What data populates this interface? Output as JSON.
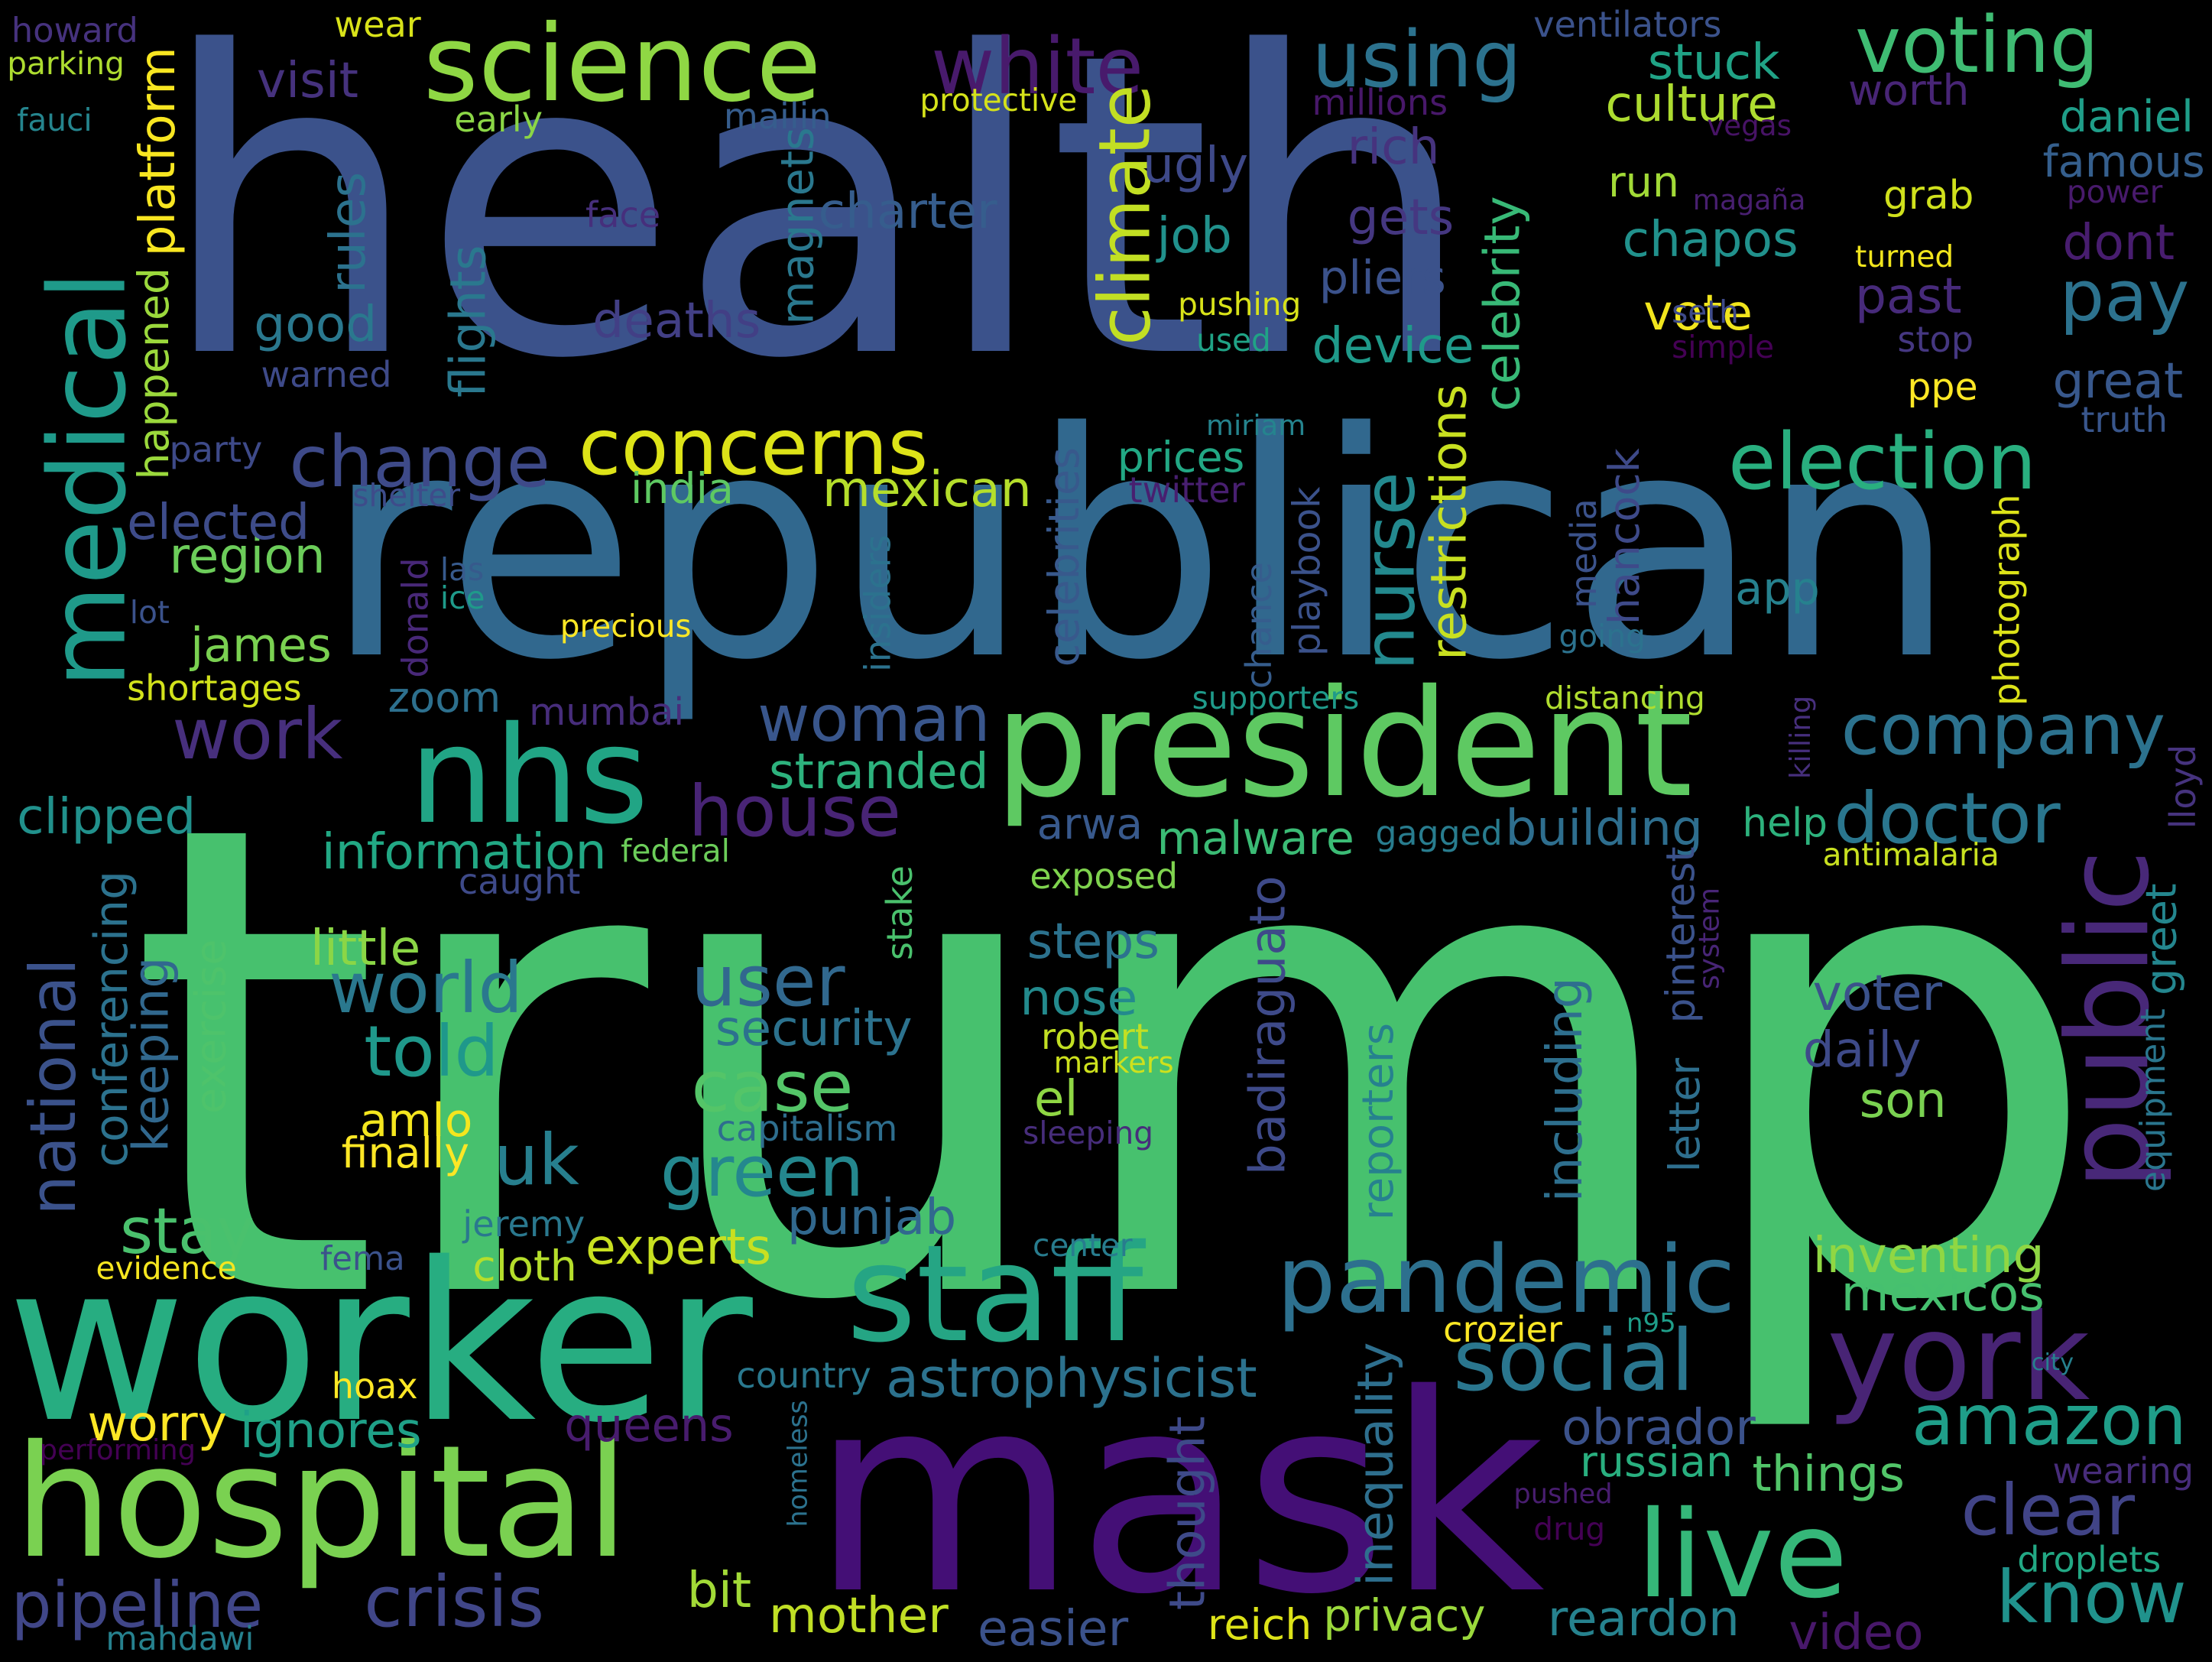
{
  "background": "#000000",
  "palette": {
    "indigo": "#440154",
    "purple": "#472d7b",
    "slate": "#3b528b",
    "steel": "#2c728e",
    "teal": "#21918c",
    "sea": "#28ae80",
    "green": "#5ec962",
    "lime": "#addc30",
    "yellow": "#fde725"
  },
  "words": [
    {
      "text": "trump",
      "color": "#47c16e"
    },
    {
      "text": "health",
      "color": "#3b528b"
    },
    {
      "text": "republican",
      "color": "#31688e"
    },
    {
      "text": "mask",
      "color": "#440f76"
    },
    {
      "text": "worker",
      "color": "#27ad81"
    },
    {
      "text": "hospital",
      "color": "#7ad151"
    },
    {
      "text": "president",
      "color": "#5ec962"
    },
    {
      "text": "staff",
      "color": "#25a584"
    },
    {
      "text": "nhs",
      "color": "#21a585"
    },
    {
      "text": "medical",
      "color": "#1f9a8a"
    },
    {
      "text": "york",
      "color": "#482475"
    },
    {
      "text": "live",
      "color": "#35b779"
    },
    {
      "text": "science",
      "color": "#8fd744"
    },
    {
      "text": "public",
      "color": "#482878"
    },
    {
      "text": "pandemic",
      "color": "#2d708e"
    },
    {
      "text": "election",
      "color": "#29af7f"
    },
    {
      "text": "concerns",
      "color": "#dde318"
    },
    {
      "text": "change",
      "color": "#3e4a89"
    },
    {
      "text": "social",
      "color": "#2a768e"
    },
    {
      "text": "company",
      "color": "#2c728e"
    },
    {
      "text": "woman",
      "color": "#39568c"
    },
    {
      "text": "using",
      "color": "#2c728e"
    },
    {
      "text": "voting",
      "color": "#3fbc73"
    },
    {
      "text": "white",
      "color": "#481a6c"
    },
    {
      "text": "climate",
      "color": "#c2df23"
    },
    {
      "text": "house",
      "color": "#482475"
    },
    {
      "text": "amazon",
      "color": "#1f9e89"
    },
    {
      "text": "crisis",
      "color": "#404688"
    },
    {
      "text": "know",
      "color": "#20928c"
    },
    {
      "text": "pipeline",
      "color": "#404688"
    },
    {
      "text": "clear",
      "color": "#414487"
    },
    {
      "text": "green",
      "color": "#24878e"
    },
    {
      "text": "national",
      "color": "#3b528b"
    },
    {
      "text": "world",
      "color": "#2a788e"
    },
    {
      "text": "told",
      "color": "#1f988b"
    },
    {
      "text": "user",
      "color": "#31688e"
    },
    {
      "text": "case",
      "color": "#54c568"
    },
    {
      "text": "work",
      "color": "#472f7d"
    },
    {
      "text": "doctor",
      "color": "#2a768e"
    },
    {
      "text": "pay",
      "color": "#2c728e"
    },
    {
      "text": "uk",
      "color": "#277f8e"
    },
    {
      "text": "stay",
      "color": "#4ac16d"
    },
    {
      "text": "nurse",
      "color": "#23898e"
    },
    {
      "text": "restrictions",
      "color": "#c8e020"
    },
    {
      "text": "astrophysicist",
      "color": "#2c728e"
    },
    {
      "text": "information",
      "color": "#22a884"
    },
    {
      "text": "mother",
      "color": "#c0df25"
    },
    {
      "text": "privacy",
      "color": "#9bd93c"
    },
    {
      "text": "reardon",
      "color": "#26828e"
    },
    {
      "text": "easier",
      "color": "#3b528b"
    },
    {
      "text": "video",
      "color": "#48186a"
    },
    {
      "text": "ignores",
      "color": "#1fa188"
    },
    {
      "text": "worry",
      "color": "#fde725"
    },
    {
      "text": "queens",
      "color": "#481c6e"
    },
    {
      "text": "bit",
      "color": "#a2da37"
    },
    {
      "text": "obrador",
      "color": "#3b528b"
    },
    {
      "text": "things",
      "color": "#52c569"
    },
    {
      "text": "russian",
      "color": "#29af7f"
    },
    {
      "text": "droplets",
      "color": "#22a884"
    },
    {
      "text": "wearing",
      "color": "#472c7a"
    },
    {
      "text": "inventing",
      "color": "#90d743"
    },
    {
      "text": "mexicos",
      "color": "#46c06f"
    },
    {
      "text": "experts",
      "color": "#c8e020"
    },
    {
      "text": "punjab",
      "color": "#31688e"
    },
    {
      "text": "building",
      "color": "#2e6e8e"
    },
    {
      "text": "malware",
      "color": "#3bbb75"
    },
    {
      "text": "arwa",
      "color": "#38598c"
    },
    {
      "text": "stranded",
      "color": "#2db27d"
    },
    {
      "text": "mumbai",
      "color": "#472d7b"
    },
    {
      "text": "zoom",
      "color": "#2d708e"
    },
    {
      "text": "clipped",
      "color": "#21918c"
    },
    {
      "text": "shortages",
      "color": "#d2e21b"
    },
    {
      "text": "james",
      "color": "#7ad151"
    },
    {
      "text": "region",
      "color": "#6ccd5a"
    },
    {
      "text": "elected",
      "color": "#3e4c8a"
    },
    {
      "text": "india",
      "color": "#5ec962"
    },
    {
      "text": "mexican",
      "color": "#b5de2b"
    },
    {
      "text": "prices",
      "color": "#22a884"
    },
    {
      "text": "deaths",
      "color": "#423f85"
    },
    {
      "text": "good",
      "color": "#2a788e"
    },
    {
      "text": "rules",
      "color": "#2c728e"
    },
    {
      "text": "flights",
      "color": "#2a788e"
    },
    {
      "text": "magnets",
      "color": "#2a788e"
    },
    {
      "text": "charter",
      "color": "#365d8d"
    },
    {
      "text": "job",
      "color": "#21918c"
    },
    {
      "text": "ugly",
      "color": "#3e4989"
    },
    {
      "text": "rich",
      "color": "#46337e"
    },
    {
      "text": "gets",
      "color": "#453781"
    },
    {
      "text": "pliers",
      "color": "#3b528b"
    },
    {
      "text": "device",
      "color": "#1f9a8a"
    },
    {
      "text": "celebrity",
      "color": "#38b977"
    },
    {
      "text": "chapos",
      "color": "#21918c"
    },
    {
      "text": "vote",
      "color": "#f1e51d"
    },
    {
      "text": "run",
      "color": "#a2da37"
    },
    {
      "text": "culture",
      "color": "#addc30"
    },
    {
      "text": "stuck",
      "color": "#20a386"
    },
    {
      "text": "worth",
      "color": "#482576"
    },
    {
      "text": "daniel",
      "color": "#1f9e89"
    },
    {
      "text": "famous",
      "color": "#355f8d"
    },
    {
      "text": "dont",
      "color": "#481d6f"
    },
    {
      "text": "past",
      "color": "#472a7a"
    },
    {
      "text": "great",
      "color": "#38588c"
    },
    {
      "text": "truth",
      "color": "#39568c"
    },
    {
      "text": "stop",
      "color": "#453781"
    },
    {
      "text": "ppe",
      "color": "#fde725"
    },
    {
      "text": "grab",
      "color": "#d0e11c"
    },
    {
      "text": "turned",
      "color": "#f1e51d"
    },
    {
      "text": "power",
      "color": "#481a6c"
    },
    {
      "text": "simple",
      "color": "#440154"
    },
    {
      "text": "seth",
      "color": "#3e4a89"
    },
    {
      "text": "magaña",
      "color": "#481f70"
    },
    {
      "text": "vegas",
      "color": "#471365"
    },
    {
      "text": "pushing",
      "color": "#d8e219"
    },
    {
      "text": "used",
      "color": "#20a386"
    },
    {
      "text": "millions",
      "color": "#48186a"
    },
    {
      "text": "ventilators",
      "color": "#3b528b"
    },
    {
      "text": "protective",
      "color": "#d5e21a"
    },
    {
      "text": "mailin",
      "color": "#365d8d"
    },
    {
      "text": "face",
      "color": "#462f7c"
    },
    {
      "text": "early",
      "color": "#8bd646"
    },
    {
      "text": "visit",
      "color": "#46327e"
    },
    {
      "text": "wear",
      "color": "#d8e219"
    },
    {
      "text": "parking",
      "color": "#addc30"
    },
    {
      "text": "howard",
      "color": "#46327e"
    },
    {
      "text": "fauci",
      "color": "#25858e"
    },
    {
      "text": "platform",
      "color": "#f8e621"
    },
    {
      "text": "happened",
      "color": "#9bd93c"
    },
    {
      "text": "warned",
      "color": "#3e4a89"
    },
    {
      "text": "party",
      "color": "#3e4a89"
    },
    {
      "text": "shelter",
      "color": "#3e4c8a"
    },
    {
      "text": "donald",
      "color": "#482878"
    },
    {
      "text": "las",
      "color": "#375a8c"
    },
    {
      "text": "ice",
      "color": "#1f9a8a"
    },
    {
      "text": "lot",
      "color": "#3b528b"
    },
    {
      "text": "precious",
      "color": "#fde725"
    },
    {
      "text": "insiders",
      "color": "#2c728e"
    },
    {
      "text": "chance",
      "color": "#365d8d"
    },
    {
      "text": "playbook",
      "color": "#3b528b"
    },
    {
      "text": "miriam",
      "color": "#25848e"
    },
    {
      "text": "twitter",
      "color": "#481f70"
    },
    {
      "text": "celebrities",
      "color": "#38598c"
    },
    {
      "text": "supporters",
      "color": "#1f9a8a"
    },
    {
      "text": "distancing",
      "color": "#b0dd2f"
    },
    {
      "text": "going",
      "color": "#2c728e"
    },
    {
      "text": "media",
      "color": "#3b528b"
    },
    {
      "text": "hancock",
      "color": "#3e4a89"
    },
    {
      "text": "app",
      "color": "#26818e"
    },
    {
      "text": "photograph",
      "color": "#dde318"
    },
    {
      "text": "killing",
      "color": "#472f7d"
    },
    {
      "text": "lloyd",
      "color": "#46337e"
    },
    {
      "text": "help",
      "color": "#2db27d"
    },
    {
      "text": "antimalaria",
      "color": "#c8e020"
    },
    {
      "text": "federal",
      "color": "#6ccd5a"
    },
    {
      "text": "gagged",
      "color": "#287c8e"
    },
    {
      "text": "caught",
      "color": "#3e4a89"
    },
    {
      "text": "exposed",
      "color": "#7fd34e"
    },
    {
      "text": "stake",
      "color": "#4ac16d"
    },
    {
      "text": "pinterest",
      "color": "#3b528b"
    },
    {
      "text": "system",
      "color": "#482576"
    },
    {
      "text": "conferencing",
      "color": "#2c728e"
    },
    {
      "text": "keeping",
      "color": "#31688e"
    },
    {
      "text": "little",
      "color": "#8bd646"
    },
    {
      "text": "exercise",
      "color": "#4ec36b"
    },
    {
      "text": "security",
      "color": "#2c728e"
    },
    {
      "text": "steps",
      "color": "#2c728e"
    },
    {
      "text": "nose",
      "color": "#238a8d"
    },
    {
      "text": "badiraguato",
      "color": "#3e4a89"
    },
    {
      "text": "reporters",
      "color": "#26818e"
    },
    {
      "text": "including",
      "color": "#2e6f8e"
    },
    {
      "text": "letter",
      "color": "#2e6f8e"
    },
    {
      "text": "voter",
      "color": "#3b528b"
    },
    {
      "text": "daily",
      "color": "#3e4a89"
    },
    {
      "text": "son",
      "color": "#7ad151"
    },
    {
      "text": "greet",
      "color": "#24868e"
    },
    {
      "text": "equipment",
      "color": "#2a768e"
    },
    {
      "text": "robert",
      "color": "#c2df23"
    },
    {
      "text": "markers",
      "color": "#cde11d"
    },
    {
      "text": "el",
      "color": "#8fd744"
    },
    {
      "text": "amlo",
      "color": "#f4e61e"
    },
    {
      "text": "finally",
      "color": "#fde725"
    },
    {
      "text": "capitalism",
      "color": "#2e6e8e"
    },
    {
      "text": "sleeping",
      "color": "#472d7b"
    },
    {
      "text": "jeremy",
      "color": "#2a788e"
    },
    {
      "text": "fema",
      "color": "#3b528b"
    },
    {
      "text": "cloth",
      "color": "#b5de2b"
    },
    {
      "text": "evidence",
      "color": "#f6e620"
    },
    {
      "text": "center",
      "color": "#287c8e"
    },
    {
      "text": "thought",
      "color": "#3e4a89"
    },
    {
      "text": "inequality",
      "color": "#2e6f8e"
    },
    {
      "text": "crozier",
      "color": "#fde725"
    },
    {
      "text": "n95",
      "color": "#1f9e89"
    },
    {
      "text": "city",
      "color": "#26818e"
    },
    {
      "text": "country",
      "color": "#2a788e"
    },
    {
      "text": "hoax",
      "color": "#fde725"
    },
    {
      "text": "homeless",
      "color": "#2c728e"
    },
    {
      "text": "performing",
      "color": "#440154"
    },
    {
      "text": "pushed",
      "color": "#481d6f"
    },
    {
      "text": "drug",
      "color": "#440154"
    },
    {
      "text": "reich",
      "color": "#dde318"
    },
    {
      "text": "mahdawi",
      "color": "#26818e"
    }
  ]
}
